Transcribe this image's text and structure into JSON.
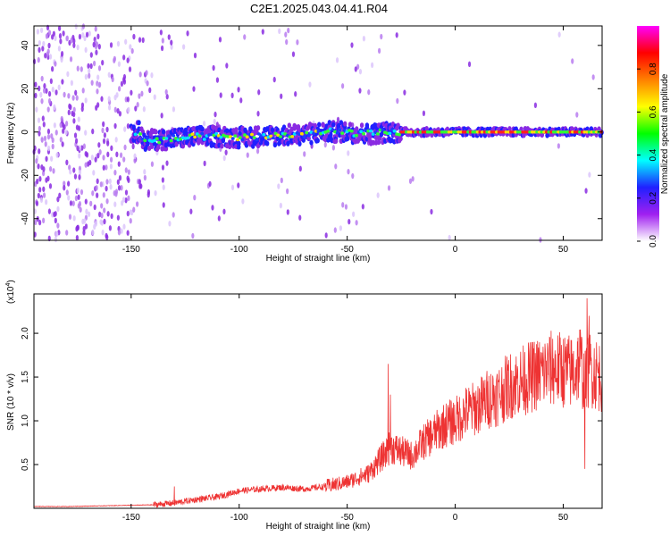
{
  "figure_title": "C2E1.2025.043.04.41.R04",
  "chart_data": [
    {
      "type": "heatmap",
      "title": "C2E1.2025.043.04.41.R04",
      "xlabel": "Height of straight line (km)",
      "ylabel": "Frequency (Hz)",
      "xlim": [
        -195,
        68
      ],
      "ylim": [
        -50,
        49
      ],
      "xticks": [
        -150,
        -100,
        -50,
        0,
        50
      ],
      "yticks": [
        -40,
        -20,
        0,
        20,
        40
      ],
      "signal_trace": {
        "x": [
          -145,
          -130,
          -115,
          -100,
          -90,
          -80,
          -70,
          -60,
          -50,
          -40,
          -30,
          -25,
          -20,
          -10,
          0,
          10,
          30,
          50,
          68
        ],
        "frequency": [
          -4,
          -3,
          -2,
          -2.5,
          -2,
          -1.5,
          -1,
          0,
          0,
          -1,
          0,
          0,
          0,
          0,
          0,
          0,
          0,
          0,
          0
        ]
      },
      "colorbar": {
        "label": "Normalized spectral amplitude",
        "range": [
          0.0,
          1.0
        ],
        "ticks": [
          "0.0",
          "0.2",
          "0.4",
          "0.6",
          "0.8"
        ],
        "colormap": [
          "#ffffff",
          "#a020f0",
          "#2020ff",
          "#00ffff",
          "#00ff00",
          "#ffff00",
          "#ff8000",
          "#ff0000",
          "#ff00ff"
        ]
      }
    },
    {
      "type": "line",
      "xlabel": "Height of straight line (km)",
      "ylabel": "SNR (10 * v/v)",
      "y_multiplier": "(x10",
      "y_multiplier_exp": "4",
      "y_multiplier_close": ")",
      "xlim": [
        -195,
        68
      ],
      "ylim": [
        0,
        2.45
      ],
      "xticks": [
        -150,
        -100,
        -50,
        0,
        50
      ],
      "yticks": [
        "0.5",
        "1.0",
        "1.5",
        "2.0"
      ],
      "color": "#ee3333",
      "series": [
        {
          "x": [
            -195,
            -180,
            -160,
            -140,
            -130,
            -120,
            -110,
            -100,
            -90,
            -80,
            -70,
            -60,
            -50,
            -45,
            -40,
            -35,
            -30,
            -25,
            -20,
            -15,
            -10,
            -5,
            0,
            5,
            10,
            15,
            20,
            25,
            30,
            35,
            40,
            45,
            50,
            55,
            58,
            60,
            62,
            65,
            68
          ],
          "values": [
            0.02,
            0.02,
            0.03,
            0.04,
            0.06,
            0.1,
            0.13,
            0.2,
            0.22,
            0.24,
            0.22,
            0.25,
            0.3,
            0.35,
            0.4,
            0.55,
            0.7,
            0.65,
            0.6,
            0.75,
            0.85,
            0.95,
            1.0,
            1.1,
            1.15,
            1.25,
            1.3,
            1.4,
            1.45,
            1.5,
            1.55,
            1.6,
            1.58,
            1.55,
            1.7,
            1.4,
            1.6,
            1.55,
            1.5
          ]
        }
      ],
      "spikes": {
        "x": [
          -130,
          -31,
          -30,
          60,
          61,
          62,
          58
        ],
        "values": [
          0.25,
          1.65,
          1.3,
          0.45,
          2.4,
          2.2,
          2.0
        ]
      }
    }
  ]
}
